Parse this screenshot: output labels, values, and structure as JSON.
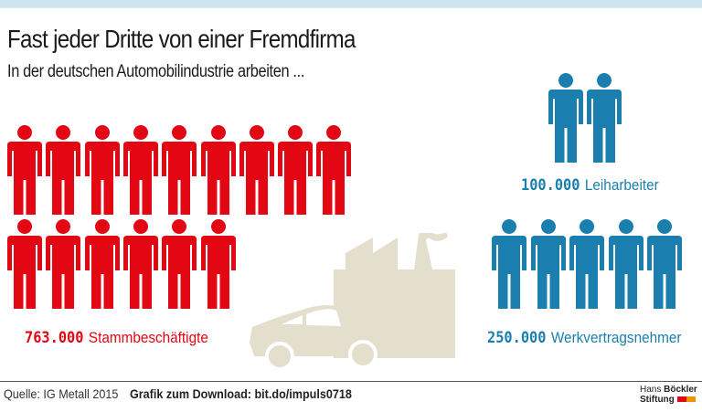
{
  "header": {
    "title": "Fast jeder Dritte von einer Fremdfirma",
    "subtitle": "In der deutschen Automobilindustrie arbeiten ..."
  },
  "groups": {
    "stamm": {
      "value": "763.000",
      "label": "Stammbeschäftigte",
      "color": "#e30613",
      "icons": 15
    },
    "leih": {
      "value": "100.000",
      "label": "Leiharbeiter",
      "color": "#1a7fae",
      "icons": 2
    },
    "werk": {
      "value": "250.000",
      "label": "Werkvertragsnehmer",
      "color": "#1a7fae",
      "icons": 5
    }
  },
  "footer": {
    "source": "Quelle: IG Metall 2015",
    "download": "Grafik zum Download: bit.do/impuls0718",
    "logo_line1_light": "Hans ",
    "logo_line1_bold": "Böckler",
    "logo_line2": "Stiftung",
    "logo_colors": [
      "#e30613",
      "#f39200"
    ]
  },
  "chart_data": {
    "type": "pictogram",
    "title": "Fast jeder Dritte von einer Fremdfirma",
    "subtitle": "In der deutschen Automobilindustrie arbeiten ...",
    "unit_per_icon": 50000,
    "categories": [
      "Stammbeschäftigte",
      "Leiharbeiter",
      "Werkvertragsnehmer"
    ],
    "values": [
      763000,
      100000,
      250000
    ],
    "icons": [
      15,
      2,
      5
    ],
    "colors": [
      "#e30613",
      "#1a7fae",
      "#1a7fae"
    ],
    "source": "IG Metall 2015"
  }
}
